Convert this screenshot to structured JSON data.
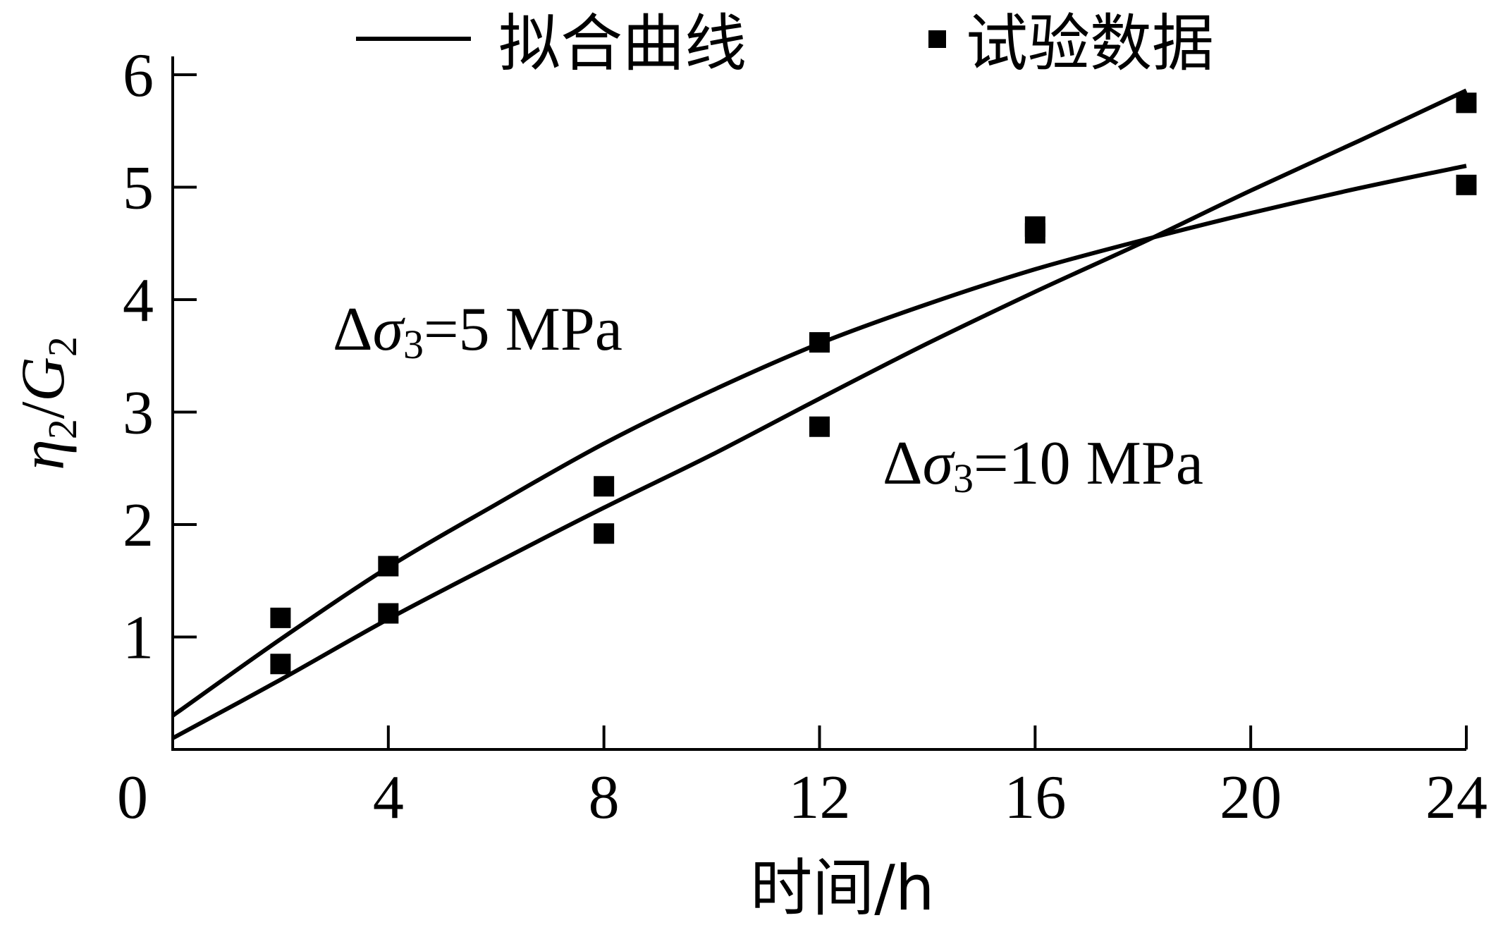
{
  "chart_data": {
    "type": "line",
    "xlabel": "时间/h",
    "ylabel": {
      "base": "η",
      "sub1": "2",
      "slash": "/",
      "letter": "G",
      "sub2": "2"
    },
    "xlim": [
      0,
      24
    ],
    "ylim": [
      0,
      6
    ],
    "xticks": [
      0,
      4,
      8,
      12,
      16,
      20,
      24
    ],
    "yticks": [
      1,
      2,
      3,
      4,
      5,
      6
    ],
    "x_tick_labels": [
      "0",
      "4",
      "8",
      "12",
      "16",
      "20",
      "24"
    ],
    "y_tick_labels": [
      "1",
      "2",
      "3",
      "4",
      "5",
      "6"
    ],
    "grid": false,
    "legend": {
      "placement": "top",
      "line_label": "拟合曲线",
      "marker_label": "试验数据"
    },
    "series": [
      {
        "annotation": {
          "delta": "Δ",
          "sigma": "σ",
          "sub": "3",
          "text": "=5 MPa"
        },
        "data_points": {
          "x": [
            2,
            4,
            8,
            12,
            16,
            24
          ],
          "y": [
            1.17,
            1.63,
            2.34,
            3.62,
            4.59,
            5.02
          ]
        },
        "fitted_curve": {
          "x": [
            0,
            2,
            4,
            6,
            8,
            10,
            12,
            14,
            16,
            18,
            20,
            22,
            24
          ],
          "y": [
            0.3,
            0.98,
            1.62,
            2.18,
            2.72,
            3.19,
            3.61,
            3.96,
            4.27,
            4.53,
            4.77,
            4.99,
            5.19
          ]
        }
      },
      {
        "annotation": {
          "delta": "Δ",
          "sigma": "σ",
          "sub": "3",
          "text": "=10 MPa"
        },
        "data_points": {
          "x": [
            2,
            4,
            8,
            12,
            16,
            24
          ],
          "y": [
            0.76,
            1.21,
            1.92,
            2.87,
            4.65,
            5.75
          ]
        },
        "fitted_curve": {
          "x": [
            0,
            2,
            4,
            6,
            8,
            10,
            12,
            14,
            16,
            18,
            20,
            22,
            24
          ],
          "y": [
            0.1,
            0.62,
            1.16,
            1.66,
            2.15,
            2.62,
            3.12,
            3.61,
            4.07,
            4.51,
            4.97,
            5.41,
            5.86
          ]
        }
      }
    ]
  }
}
